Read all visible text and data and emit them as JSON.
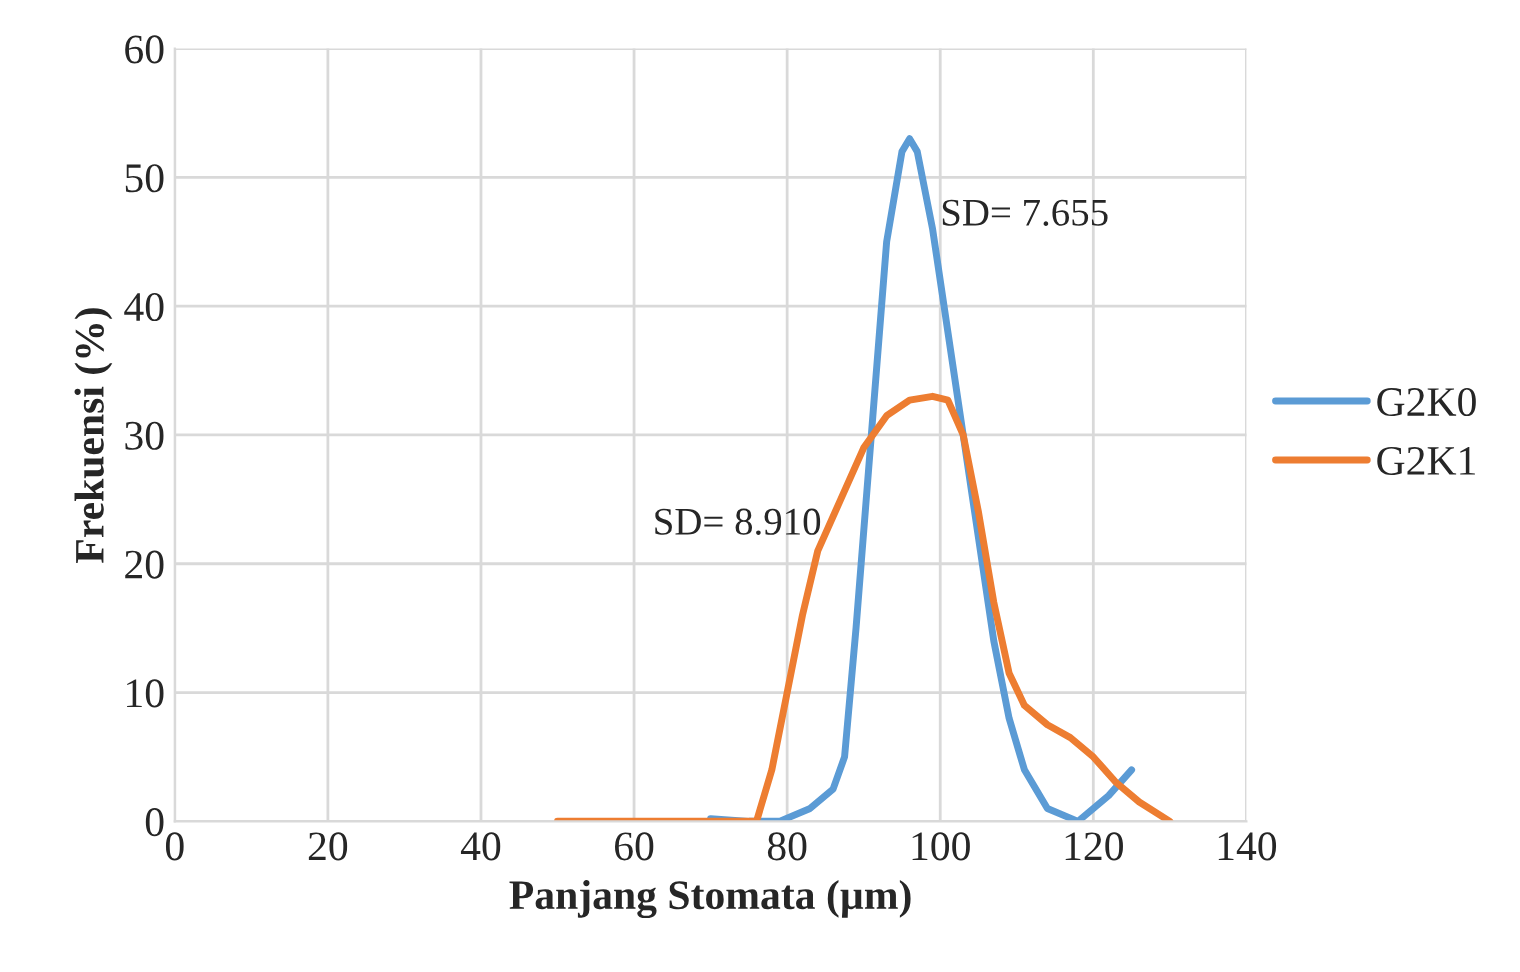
{
  "chart_data": {
    "type": "line",
    "xlabel": "Panjang Stomata (µm)",
    "ylabel": "Frekuensi (%)",
    "xlim": [
      0,
      140
    ],
    "xticks": [
      0,
      20,
      40,
      60,
      80,
      100,
      120,
      140
    ],
    "ylim": [
      0,
      60
    ],
    "yticks": [
      0,
      10,
      20,
      30,
      40,
      50,
      60
    ],
    "grid": true,
    "legend": "right",
    "marker": "none",
    "line_style": "solid",
    "annotations": [
      "SD= 7.655",
      "SD= 8.910"
    ],
    "series": [
      {
        "name": "G2K0",
        "color": "#5b9bd5",
        "x": [
          70,
          75,
          79,
          83,
          86,
          87.5,
          89,
          91,
          93,
          95,
          96,
          97,
          99,
          101,
          103,
          105,
          107,
          109,
          111,
          114,
          118,
          122,
          125
        ],
        "values": [
          0.2,
          0,
          0,
          1,
          2.5,
          5,
          15,
          30,
          45,
          52,
          53,
          52,
          46,
          38,
          30,
          22,
          14,
          8,
          4,
          1,
          0,
          2,
          4
        ]
      },
      {
        "name": "G2K1",
        "color": "#ed7d31",
        "x": [
          50,
          60,
          70,
          76,
          78,
          80,
          82,
          84,
          87,
          90,
          93,
          96,
          99,
          101,
          103,
          105,
          107,
          109,
          111,
          114,
          117,
          120,
          123,
          126,
          130
        ],
        "values": [
          0,
          0,
          0,
          0,
          4,
          10,
          16,
          21,
          25,
          29,
          31.5,
          32.7,
          33,
          32.7,
          30,
          24,
          17,
          11.5,
          9,
          7.5,
          6.5,
          5,
          3,
          1.5,
          0
        ]
      }
    ]
  }
}
